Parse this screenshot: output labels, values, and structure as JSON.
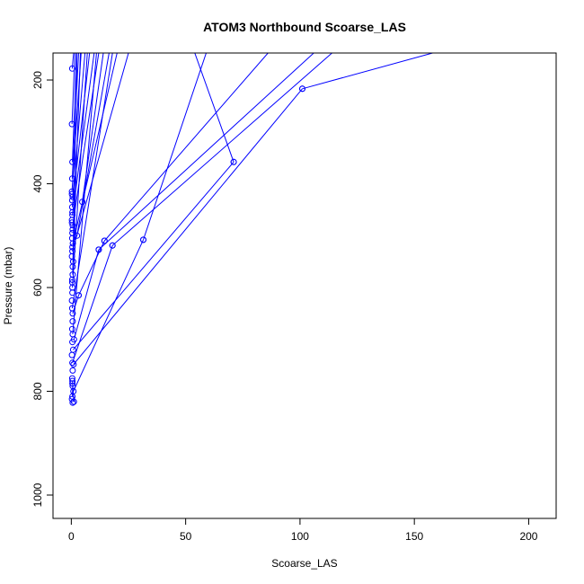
{
  "chart_data": {
    "type": "line",
    "title": "ATOM3 Northbound Scoarse_LAS",
    "xlabel": "Scoarse_LAS",
    "ylabel": "Pressure (mbar)",
    "xlim": [
      -8,
      212
    ],
    "ylim": [
      1045,
      148
    ],
    "y_reversed": true,
    "grid": false,
    "legend": "none",
    "x_ticks": [
      0,
      50,
      100,
      150,
      200
    ],
    "y_ticks": [
      200,
      400,
      600,
      800,
      1000
    ],
    "series_color": "#0000ff",
    "marker": "open-circle",
    "series": [
      {
        "values": [
          [
            0.4,
            178
          ],
          [
            1.0,
            148
          ]
        ]
      },
      {
        "values": [
          [
            0.3,
            285
          ],
          [
            1.6,
            148
          ]
        ]
      },
      {
        "values": [
          [
            0.5,
            358
          ],
          [
            2.3,
            148
          ]
        ]
      },
      {
        "values": [
          [
            0.4,
            390
          ],
          [
            3.2,
            148
          ]
        ]
      },
      {
        "values": [
          [
            0.3,
            415
          ],
          [
            4.3,
            148
          ]
        ]
      },
      {
        "values": [
          [
            0.6,
            425
          ],
          [
            6.0,
            148
          ]
        ]
      },
      {
        "values": [
          [
            4.8,
            435
          ],
          [
            14.0,
            148
          ]
        ]
      },
      {
        "values": [
          [
            0.4,
            445
          ],
          [
            8.0,
            148
          ]
        ]
      },
      {
        "values": [
          [
            0.5,
            460
          ],
          [
            10.0,
            148
          ]
        ]
      },
      {
        "values": [
          [
            0.6,
            480
          ],
          [
            12.0,
            148
          ]
        ]
      },
      {
        "values": [
          [
            2.5,
            500
          ],
          [
            16.5,
            148
          ]
        ]
      },
      {
        "values": [
          [
            0.7,
            515
          ],
          [
            20.0,
            148
          ]
        ]
      },
      {
        "values": [
          [
            0.5,
            530
          ],
          [
            25.0,
            148
          ]
        ]
      },
      {
        "values": [
          [
            0.8,
            550
          ],
          [
            4.0,
            148
          ]
        ]
      },
      {
        "values": [
          [
            0.6,
            575
          ],
          [
            2.5,
            148
          ]
        ]
      },
      {
        "values": [
          [
            0.5,
            600
          ],
          [
            7.0,
            148
          ]
        ]
      },
      {
        "values": [
          [
            0.4,
            640
          ],
          [
            18.0,
            148
          ]
        ]
      },
      {
        "values": [
          [
            0.6,
            690
          ],
          [
            11.0,
            148
          ]
        ]
      },
      {
        "values": [
          [
            71,
            358
          ],
          [
            54,
            148
          ]
        ]
      },
      {
        "values": [
          [
            0.8,
            720
          ],
          [
            71,
            358
          ]
        ]
      },
      {
        "values": [
          [
            101,
            217
          ],
          [
            158,
            148
          ]
        ]
      },
      {
        "values": [
          [
            1.0,
            748
          ],
          [
            101,
            217
          ]
        ]
      },
      {
        "values": [
          [
            31.5,
            508
          ],
          [
            59,
            148
          ]
        ]
      },
      {
        "values": [
          [
            14.5,
            510
          ],
          [
            86,
            148
          ]
        ]
      },
      {
        "values": [
          [
            12,
            527
          ],
          [
            106,
            148
          ]
        ]
      },
      {
        "values": [
          [
            18,
            519
          ],
          [
            114,
            148
          ]
        ]
      },
      {
        "values": [
          [
            3.2,
            615
          ],
          [
            14.5,
            510
          ]
        ]
      },
      {
        "values": [
          [
            1.2,
            700
          ],
          [
            12,
            527
          ]
        ]
      },
      {
        "values": [
          [
            0.5,
            745
          ],
          [
            18,
            519
          ]
        ]
      },
      {
        "values": [
          [
            0.9,
            800
          ],
          [
            31.5,
            508
          ]
        ]
      },
      {
        "values": [
          [
            0.6,
            650
          ],
          [
            3.2,
            615
          ]
        ]
      },
      {
        "values": [
          [
            0.5,
            810
          ],
          [
            0.6,
            790
          ]
        ]
      },
      {
        "values": [
          [
            1.1,
            820
          ],
          [
            0.5,
            780
          ]
        ]
      }
    ],
    "extra_points": [
      [
        0.3,
        420
      ],
      [
        0.4,
        432
      ],
      [
        0.5,
        455
      ],
      [
        0.3,
        470
      ],
      [
        0.6,
        488
      ],
      [
        0.4,
        505
      ],
      [
        0.5,
        522
      ],
      [
        0.3,
        540
      ],
      [
        0.6,
        560
      ],
      [
        0.4,
        585
      ],
      [
        0.5,
        610
      ],
      [
        0.3,
        625
      ],
      [
        0.6,
        665
      ],
      [
        0.4,
        680
      ],
      [
        0.5,
        705
      ],
      [
        0.3,
        730
      ],
      [
        0.6,
        760
      ],
      [
        0.4,
        775
      ],
      [
        0.5,
        785
      ],
      [
        0.3,
        815
      ],
      [
        0.6,
        822
      ],
      [
        0.4,
        590
      ],
      [
        0.5,
        495
      ],
      [
        0.3,
        475
      ]
    ]
  }
}
